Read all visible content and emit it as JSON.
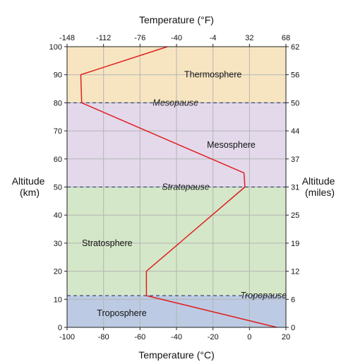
{
  "chart_data": {
    "type": "line",
    "top_axis_title": "Temperature (°F)",
    "bottom_axis_title": "Temperature (°C)",
    "left_axis_title": [
      "Altitude",
      "(km)"
    ],
    "right_axis_title": [
      "Altitude",
      "(miles)"
    ],
    "xlim_c": [
      -100,
      20
    ],
    "ylim_km": [
      0,
      100
    ],
    "x_ticks_c": [
      "-100",
      "-80",
      "-60",
      "-40",
      "-20",
      "0",
      "20"
    ],
    "x_ticks_f": [
      "-148",
      "-112",
      "-76",
      "-40",
      "-4",
      "32",
      "68"
    ],
    "y_ticks_km": [
      "0",
      "10",
      "20",
      "30",
      "40",
      "50",
      "60",
      "70",
      "80",
      "90",
      "100"
    ],
    "y_ticks_miles": [
      "0",
      "6",
      "12",
      "19",
      "25",
      "31",
      "37",
      "44",
      "50",
      "56",
      "62"
    ],
    "grid": true,
    "layers": [
      {
        "name": "Troposphere",
        "from_km": 0,
        "to_km": 11.3,
        "color": "#bccbe3",
        "label_x_c": -70,
        "label_y_km": 5
      },
      {
        "name": "Stratosphere",
        "from_km": 11.3,
        "to_km": 50,
        "color": "#d4e7c8",
        "label_x_c": -78,
        "label_y_km": 30
      },
      {
        "name": "Mesosphere",
        "from_km": 50,
        "to_km": 80,
        "color": "#e3d9eb",
        "label_x_c": -10,
        "label_y_km": 65
      },
      {
        "name": "Thermosphere",
        "from_km": 80,
        "to_km": 100,
        "color": "#f7e5c1",
        "label_x_c": -20,
        "label_y_km": 90
      }
    ],
    "boundaries": [
      {
        "name": "Tropopause",
        "altitude_km": 11.3,
        "label_x_c": -5
      },
      {
        "name": "Stratopause",
        "altitude_km": 50,
        "label_x_c": -48
      },
      {
        "name": "Mesopause",
        "altitude_km": 80,
        "label_x_c": -53
      }
    ],
    "series": [
      {
        "color": "#e02020",
        "points": [
          {
            "t_c": 15,
            "alt_km": 0
          },
          {
            "t_c": -56.5,
            "alt_km": 11.3
          },
          {
            "t_c": -56.5,
            "alt_km": 20
          },
          {
            "t_c": -2.5,
            "alt_km": 50
          },
          {
            "t_c": -3,
            "alt_km": 55
          },
          {
            "t_c": -56.5,
            "alt_km": 70
          },
          {
            "t_c": -92,
            "alt_km": 80
          },
          {
            "t_c": -92.5,
            "alt_km": 90
          },
          {
            "t_c": -45,
            "alt_km": 100
          }
        ]
      }
    ]
  }
}
